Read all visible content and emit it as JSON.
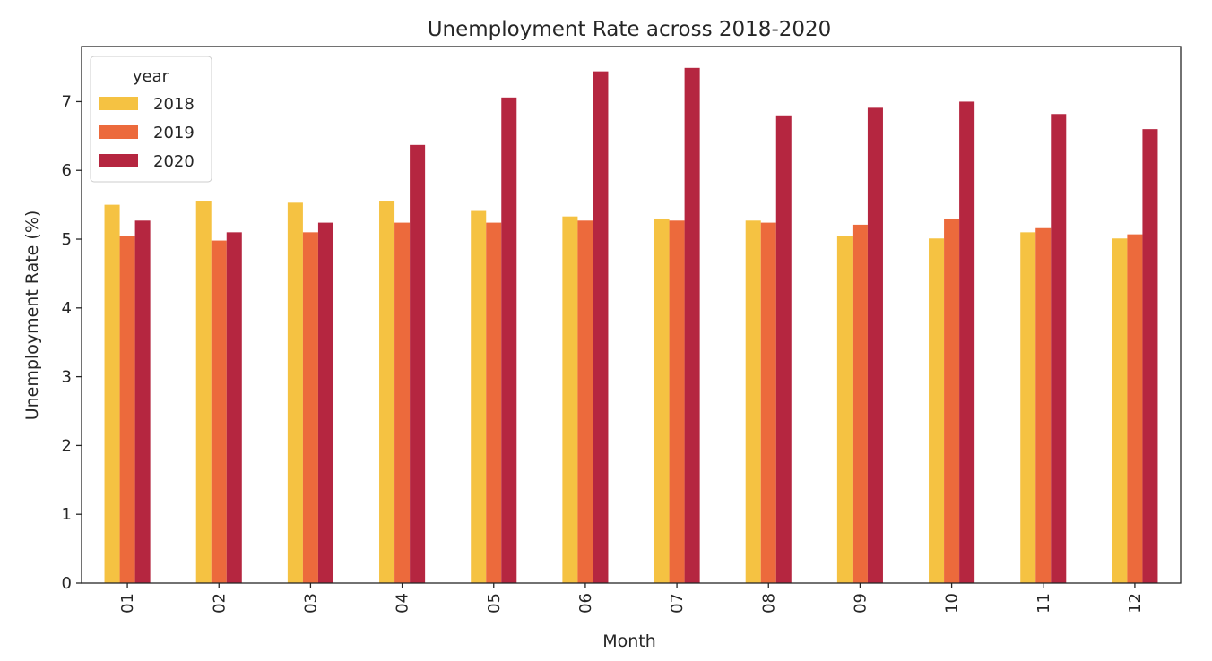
{
  "chart_data": {
    "type": "bar",
    "title": "Unemployment Rate across 2018-2020",
    "xlabel": "Month",
    "ylabel": "Unemployment Rate (%)",
    "ylim": [
      0,
      7.8
    ],
    "yticks": [
      0,
      1,
      2,
      3,
      4,
      5,
      6,
      7
    ],
    "yticklabels": [
      "0",
      "1",
      "2",
      "3",
      "4",
      "5",
      "6",
      "7"
    ],
    "categories": [
      "01",
      "02",
      "03",
      "04",
      "05",
      "06",
      "07",
      "08",
      "09",
      "10",
      "11",
      "12"
    ],
    "series": [
      {
        "name": "2018",
        "color": "#f5c242",
        "values": [
          5.5,
          5.56,
          5.53,
          5.56,
          5.41,
          5.33,
          5.3,
          5.27,
          5.04,
          5.01,
          5.1,
          5.01
        ]
      },
      {
        "name": "2019",
        "color": "#ec6a3c",
        "values": [
          5.04,
          4.98,
          5.1,
          5.24,
          5.24,
          5.27,
          5.27,
          5.24,
          5.21,
          5.3,
          5.16,
          5.07
        ]
      },
      {
        "name": "2020",
        "color": "#b52640",
        "values": [
          5.27,
          5.1,
          5.24,
          6.37,
          7.06,
          7.44,
          7.49,
          6.8,
          6.91,
          7.0,
          6.82,
          6.6
        ]
      }
    ],
    "legend": {
      "title": "year",
      "placement": "top-left"
    },
    "grid": false
  }
}
